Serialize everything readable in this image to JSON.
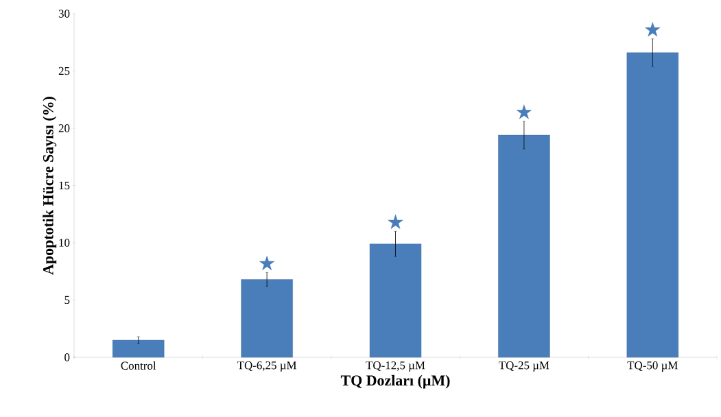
{
  "chart_data": {
    "type": "bar",
    "xlabel": "TQ Dozları (µM)",
    "ylabel": "Apoptotik Hücre Sayısı (%)",
    "categories": [
      "Control",
      "TQ-6,25 µM",
      "TQ-12,5 µM",
      "TQ-25 µM",
      "TQ-50 µM"
    ],
    "values": [
      1.5,
      6.8,
      9.9,
      19.4,
      26.6
    ],
    "errors": [
      0.3,
      0.6,
      1.1,
      1.2,
      1.2
    ],
    "color": "#4a7ebb",
    "ylim": [
      0,
      30
    ],
    "yticks": [
      0,
      5,
      10,
      15,
      20,
      25,
      30
    ],
    "grid": false,
    "annotations": [
      "★",
      "★",
      "★",
      "★"
    ]
  }
}
